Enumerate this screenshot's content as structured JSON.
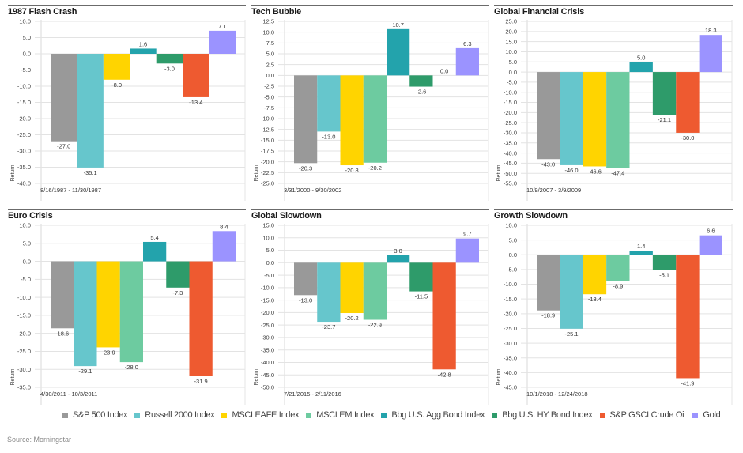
{
  "legend": [
    {
      "name": "S&P 500 Index",
      "color": "#999999"
    },
    {
      "name": "Russell 2000 Index",
      "color": "#66C6CC"
    },
    {
      "name": "MSCI EAFE Index",
      "color": "#FFD400"
    },
    {
      "name": "MSCI EM Index",
      "color": "#6DCBA0"
    },
    {
      "name": "Bbg U.S. Agg Bond Index",
      "color": "#23A3AC"
    },
    {
      "name": "Bbg U.S. HY Bond Index",
      "color": "#2E9B6A"
    },
    {
      "name": "S&P GSCI Crude Oil",
      "color": "#EE5A30"
    },
    {
      "name": "Gold",
      "color": "#9B93FF"
    }
  ],
  "source": "Source: Morningstar",
  "chart_data": [
    {
      "type": "bar",
      "title": "1987 Flash Crash",
      "date_range": "8/16/1987 - 11/30/1987",
      "ylabel": "Return",
      "ylim": [
        -40,
        10
      ],
      "ytick_step": 5,
      "ytick_decimals": 1,
      "grid": true,
      "categories": [
        "S&P 500 Index",
        "Russell 2000 Index",
        "MSCI EAFE Index",
        "Bbg U.S. Agg Bond Index",
        "Bbg U.S. HY Bond Index",
        "S&P GSCI Crude Oil",
        "Gold"
      ],
      "values": [
        -27.0,
        -35.1,
        -8.0,
        1.6,
        -3.0,
        -13.4,
        7.1
      ]
    },
    {
      "type": "bar",
      "title": "Tech Bubble",
      "date_range": "3/31/2000 - 9/30/2002",
      "ylabel": "Return",
      "ylim": [
        -25,
        12.5
      ],
      "ytick_step": 2.5,
      "ytick_decimals": 1,
      "grid": true,
      "categories": [
        "S&P 500 Index",
        "Russell 2000 Index",
        "MSCI EAFE Index",
        "MSCI EM Index",
        "Bbg U.S. Agg Bond Index",
        "Bbg U.S. HY Bond Index",
        "S&P GSCI Crude Oil",
        "Gold"
      ],
      "values": [
        -20.3,
        -13.0,
        -20.8,
        -20.2,
        10.7,
        -2.6,
        0.0,
        6.3
      ]
    },
    {
      "type": "bar",
      "title": "Global Financial Crisis",
      "date_range": "10/9/2007 - 3/9/2009",
      "ylabel": "Return",
      "ylim": [
        -55,
        25
      ],
      "ytick_step": 5,
      "ytick_decimals": 1,
      "grid": true,
      "categories": [
        "S&P 500 Index",
        "Russell 2000 Index",
        "MSCI EAFE Index",
        "MSCI EM Index",
        "Bbg U.S. Agg Bond Index",
        "Bbg U.S. HY Bond Index",
        "S&P GSCI Crude Oil",
        "Gold"
      ],
      "values": [
        -43.0,
        -46.0,
        -46.6,
        -47.4,
        5.0,
        -21.1,
        -30.0,
        18.3
      ]
    },
    {
      "type": "bar",
      "title": "Euro Crisis",
      "date_range": "4/30/2011 - 10/3/2011",
      "ylabel": "Return",
      "ylim": [
        -35,
        10
      ],
      "ytick_step": 5,
      "ytick_decimals": 1,
      "grid": true,
      "categories": [
        "S&P 500 Index",
        "Russell 2000 Index",
        "MSCI EAFE Index",
        "MSCI EM Index",
        "Bbg U.S. Agg Bond Index",
        "Bbg U.S. HY Bond Index",
        "S&P GSCI Crude Oil",
        "Gold"
      ],
      "values": [
        -18.6,
        -29.1,
        -23.9,
        -28.0,
        5.4,
        -7.3,
        -31.9,
        8.4
      ]
    },
    {
      "type": "bar",
      "title": "Global Slowdown",
      "date_range": "7/21/2015 - 2/11/2016",
      "ylabel": "Return",
      "ylim": [
        -50,
        15
      ],
      "ytick_step": 5,
      "ytick_decimals": 1,
      "grid": true,
      "categories": [
        "S&P 500 Index",
        "Russell 2000 Index",
        "MSCI EAFE Index",
        "MSCI EM Index",
        "Bbg U.S. Agg Bond Index",
        "Bbg U.S. HY Bond Index",
        "S&P GSCI Crude Oil",
        "Gold"
      ],
      "values": [
        -13.0,
        -23.7,
        -20.2,
        -22.9,
        3.0,
        -11.5,
        -42.8,
        9.7
      ]
    },
    {
      "type": "bar",
      "title": "Growth Slowdown",
      "date_range": "10/1/2018 - 12/24/2018",
      "ylabel": "Return",
      "ylim": [
        -45,
        10
      ],
      "ytick_step": 5,
      "ytick_decimals": 1,
      "grid": true,
      "categories": [
        "S&P 500 Index",
        "Russell 2000 Index",
        "MSCI EAFE Index",
        "MSCI EM Index",
        "Bbg U.S. Agg Bond Index",
        "Bbg U.S. HY Bond Index",
        "S&P GSCI Crude Oil",
        "Gold"
      ],
      "values": [
        -18.9,
        -25.1,
        -13.4,
        -8.9,
        1.4,
        -5.1,
        -41.9,
        6.6
      ]
    }
  ]
}
